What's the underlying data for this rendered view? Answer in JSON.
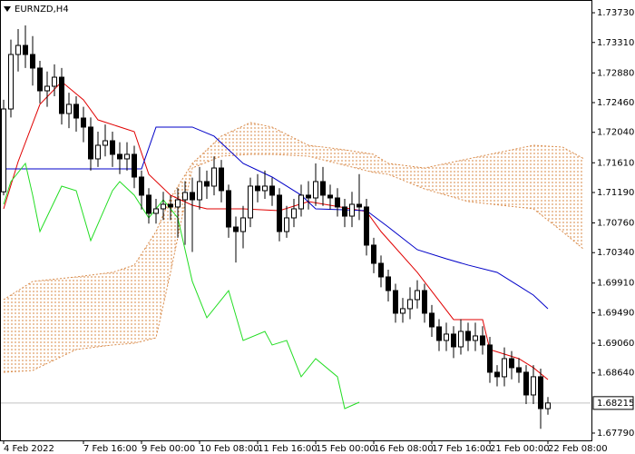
{
  "chart_data": {
    "type": "candlestick",
    "title": "EURNZD,H4",
    "xlim": [
      -0.5,
      81
    ],
    "ylim": [
      1.67687,
      1.7391
    ],
    "xticks": [
      {
        "value": 0,
        "label": "4 Feb 2022"
      },
      {
        "value": 11,
        "label": "7 Feb 16:00"
      },
      {
        "value": 19,
        "label": "9 Feb 00:00"
      },
      {
        "value": 27,
        "label": "10 Feb 08:00"
      },
      {
        "value": 35,
        "label": "11 Feb 16:00"
      },
      {
        "value": 43,
        "label": "15 Feb 00:00"
      },
      {
        "value": 51,
        "label": "16 Feb 08:00"
      },
      {
        "value": 59,
        "label": "17 Feb 16:00"
      },
      {
        "value": 67,
        "label": "21 Feb 00:00"
      },
      {
        "value": 75,
        "label": "22 Feb 08:00"
      }
    ],
    "yticks": [
      {
        "value": 1.7373,
        "label": "1.73730"
      },
      {
        "value": 1.7331,
        "label": "1.73310"
      },
      {
        "value": 1.7288,
        "label": "1.72880"
      },
      {
        "value": 1.7246,
        "label": "1.72460"
      },
      {
        "value": 1.7204,
        "label": "1.72040"
      },
      {
        "value": 1.7161,
        "label": "1.71610"
      },
      {
        "value": 1.7119,
        "label": "1.71190"
      },
      {
        "value": 1.7076,
        "label": "1.70760"
      },
      {
        "value": 1.7034,
        "label": "1.70340"
      },
      {
        "value": 1.6991,
        "label": "1.69910"
      },
      {
        "value": 1.6949,
        "label": "1.69490"
      },
      {
        "value": 1.6906,
        "label": "1.69060"
      },
      {
        "value": 1.6864,
        "label": "1.68640"
      },
      {
        "value": 1.6779,
        "label": "1.67790"
      }
    ],
    "last_price": {
      "value": 1.68215,
      "label": "1.68215"
    },
    "candles": {
      "up_color": "#ffffff",
      "down_color": "#000000",
      "open": [
        1.712,
        1.7237,
        1.7314,
        1.73268,
        1.7314,
        1.72948,
        1.72627,
        1.72691,
        1.72819,
        1.72306,
        1.72435,
        1.72242,
        1.72114,
        1.71665,
        1.71857,
        1.71921,
        1.71729,
        1.71665,
        1.71729,
        1.71408,
        1.71152,
        1.70895,
        1.70959,
        1.71023,
        1.70985,
        1.71087,
        1.7119,
        1.71087,
        1.71344,
        1.7128,
        1.71536,
        1.71216,
        1.70702,
        1.70638,
        1.70831,
        1.7128,
        1.71216,
        1.7128,
        1.71152,
        1.70638,
        1.70831,
        1.70959,
        1.71152,
        1.71113,
        1.71344,
        1.71152,
        1.71113,
        1.70985,
        1.70856,
        1.71023,
        1.70985,
        1.70446,
        1.70189,
        1.69997,
        1.69804,
        1.69484,
        1.69548,
        1.69676,
        1.69804,
        1.69484,
        1.69291,
        1.69099,
        1.69189,
        1.69009,
        1.69227,
        1.69099,
        1.69163,
        1.69035,
        1.6865,
        1.68586,
        1.68842,
        1.68714,
        1.6865,
        1.68329,
        1.68586,
        1.68136
      ],
      "high": [
        1.725,
        1.7335,
        1.735,
        1.7355,
        1.734,
        1.7305,
        1.729,
        1.73,
        1.7295,
        1.726,
        1.7255,
        1.724,
        1.7225,
        1.7205,
        1.7215,
        1.7205,
        1.719,
        1.719,
        1.7185,
        1.715,
        1.7125,
        1.711,
        1.712,
        1.7115,
        1.7125,
        1.7135,
        1.714,
        1.7155,
        1.715,
        1.717,
        1.7165,
        1.713,
        1.7085,
        1.71,
        1.714,
        1.7145,
        1.715,
        1.714,
        1.7125,
        1.71,
        1.711,
        1.713,
        1.7135,
        1.716,
        1.7155,
        1.713,
        1.7125,
        1.711,
        1.712,
        1.7145,
        1.711,
        1.7055,
        1.703,
        1.701,
        1.699,
        1.697,
        1.6985,
        1.6995,
        1.699,
        1.696,
        1.694,
        1.6935,
        1.693,
        1.694,
        1.6935,
        1.6935,
        1.693,
        1.6915,
        1.6875,
        1.69,
        1.6895,
        1.6885,
        1.6875,
        1.6875,
        1.687,
        1.683
      ],
      "low": [
        1.7115,
        1.7225,
        1.729,
        1.7295,
        1.727,
        1.7245,
        1.724,
        1.7255,
        1.7215,
        1.721,
        1.7205,
        1.719,
        1.715,
        1.7155,
        1.717,
        1.7155,
        1.7145,
        1.715,
        1.7125,
        1.7095,
        1.7075,
        1.7075,
        1.708,
        1.708,
        1.7055,
        1.7045,
        1.7035,
        1.7095,
        1.711,
        1.7115,
        1.7105,
        1.7055,
        1.702,
        1.704,
        1.707,
        1.7105,
        1.711,
        1.71,
        1.705,
        1.7055,
        1.707,
        1.7085,
        1.7095,
        1.71,
        1.71,
        1.7095,
        1.7085,
        1.707,
        1.707,
        1.708,
        1.703,
        1.7005,
        1.6985,
        1.6965,
        1.6935,
        1.6935,
        1.694,
        1.6955,
        1.6935,
        1.6915,
        1.6895,
        1.6895,
        1.6885,
        1.689,
        1.6895,
        1.6895,
        1.689,
        1.685,
        1.6845,
        1.6845,
        1.6855,
        1.685,
        1.682,
        1.682,
        1.6785,
        1.6805
      ],
      "close": [
        1.7237,
        1.7314,
        1.73268,
        1.7314,
        1.72948,
        1.72627,
        1.72691,
        1.72819,
        1.72306,
        1.72435,
        1.72242,
        1.72114,
        1.71665,
        1.71857,
        1.71921,
        1.71729,
        1.71665,
        1.71729,
        1.71408,
        1.71152,
        1.70895,
        1.70959,
        1.71023,
        1.70985,
        1.71087,
        1.7119,
        1.71087,
        1.71344,
        1.7128,
        1.71536,
        1.71216,
        1.70702,
        1.70638,
        1.70831,
        1.7128,
        1.71216,
        1.7128,
        1.71152,
        1.70638,
        1.70831,
        1.70959,
        1.71152,
        1.71113,
        1.71344,
        1.71152,
        1.71113,
        1.70985,
        1.70856,
        1.71023,
        1.70985,
        1.70446,
        1.70189,
        1.69997,
        1.69804,
        1.69484,
        1.69548,
        1.69676,
        1.69804,
        1.69484,
        1.69291,
        1.69099,
        1.69189,
        1.69009,
        1.69227,
        1.69099,
        1.69163,
        1.69035,
        1.6865,
        1.68586,
        1.68842,
        1.68714,
        1.6865,
        1.68329,
        1.68586,
        1.68136,
        1.68215
      ]
    },
    "lines": [
      {
        "color": "#e00000",
        "x": [
          0,
          2,
          5,
          8,
          11,
          13,
          18,
          20,
          23,
          26,
          28,
          33,
          38,
          42,
          50,
          52,
          57,
          62,
          66,
          67,
          71,
          73,
          75
        ],
        "values": [
          1.70959,
          1.71626,
          1.72435,
          1.72755,
          1.72499,
          1.72216,
          1.7205,
          1.71447,
          1.71152,
          1.7101,
          1.70959,
          1.70959,
          1.70934,
          1.71062,
          1.70921,
          1.70638,
          1.70061,
          1.69394,
          1.69394,
          1.68971,
          1.68842,
          1.68714,
          1.68547
        ]
      },
      {
        "color": "#0000c8",
        "x": [
          0,
          19,
          21,
          26,
          29,
          33,
          37,
          41,
          43,
          50,
          53,
          57,
          61,
          64,
          68,
          71,
          73,
          75
        ],
        "values": [
          1.71524,
          1.71524,
          1.72114,
          1.72114,
          1.71986,
          1.71601,
          1.71408,
          1.71152,
          1.70959,
          1.70934,
          1.70702,
          1.70382,
          1.70253,
          1.70164,
          1.70061,
          1.69869,
          1.6974,
          1.69548
        ]
      },
      {
        "color": "#22dd22",
        "x": [
          0,
          1,
          3,
          4,
          5,
          8,
          10,
          12,
          15,
          16,
          18,
          20,
          22,
          24,
          26,
          28,
          31,
          33,
          36,
          37,
          39,
          41,
          43,
          46,
          47,
          49
        ],
        "values": [
          1.71023,
          1.71344,
          1.71601,
          1.71152,
          1.70638,
          1.7128,
          1.71216,
          1.7051,
          1.71216,
          1.71344,
          1.71152,
          1.70831,
          1.71087,
          1.70831,
          1.69933,
          1.6942,
          1.69804,
          1.69099,
          1.69227,
          1.69035,
          1.69099,
          1.68586,
          1.68842,
          1.68586,
          1.68136,
          1.68226
        ]
      }
    ],
    "cloud": {
      "color": "#d98b4a",
      "x": [
        0,
        4,
        10,
        15,
        18,
        21,
        23,
        26,
        30,
        34,
        37,
        42,
        47,
        51,
        53,
        58,
        64,
        73,
        77,
        80
      ],
      "span_a": [
        1.69676,
        1.69933,
        1.69997,
        1.70061,
        1.70164,
        1.70638,
        1.71113,
        1.71601,
        1.71986,
        1.72178,
        1.72114,
        1.71857,
        1.71793,
        1.71729,
        1.71601,
        1.71536,
        1.71665,
        1.71857,
        1.71832,
        1.71665
      ],
      "span_b": [
        1.6865,
        1.68675,
        1.68971,
        1.69035,
        1.6906,
        1.69137,
        1.70061,
        1.71536,
        1.71703,
        1.71729,
        1.71729,
        1.71703,
        1.71575,
        1.71472,
        1.71447,
        1.71241,
        1.71062,
        1.70959,
        1.70638,
        1.70382
      ]
    }
  }
}
